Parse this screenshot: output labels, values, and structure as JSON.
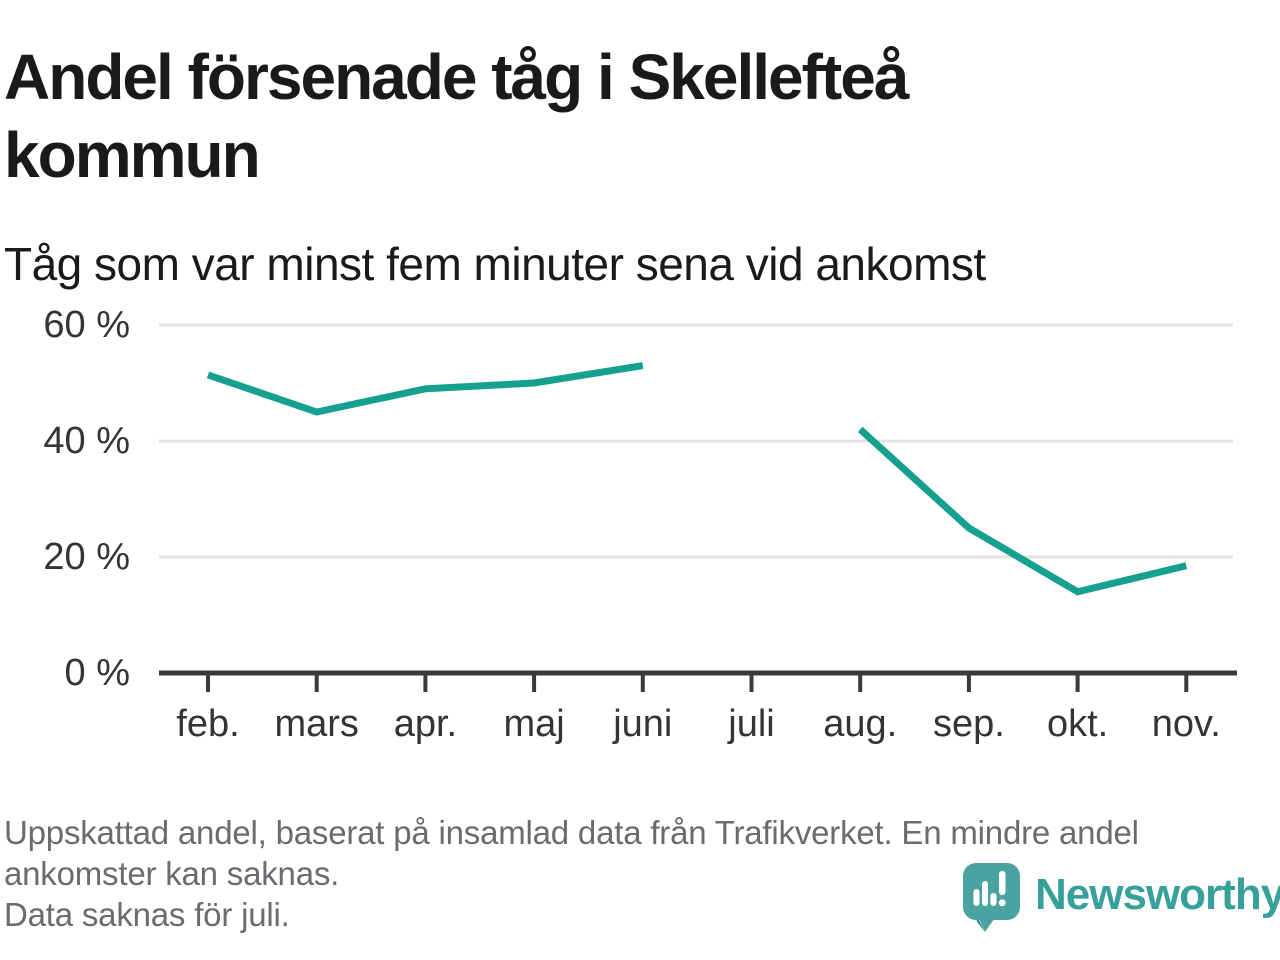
{
  "header": {
    "title": "Andel försenade tåg i Skellefteå kommun",
    "subtitle": "Tåg som var minst fem minuter sena vid ankomst"
  },
  "chart_data": {
    "type": "line",
    "title": "Andel försenade tåg i Skellefteå kommun",
    "subtitle": "Tåg som var minst fem minuter sena vid ankomst",
    "categories": [
      "feb.",
      "mars",
      "apr.",
      "maj",
      "juni",
      "juli",
      "aug.",
      "sep.",
      "okt.",
      "nov."
    ],
    "series": [
      {
        "name": "Andel försenade tåg",
        "values": [
          51.4,
          45,
          49,
          50,
          53,
          null,
          42,
          25,
          14,
          18.5
        ]
      }
    ],
    "unit": "%",
    "ylim": [
      0,
      60
    ],
    "yticks": [
      0,
      20,
      40,
      60
    ],
    "ytick_labels": [
      "0 %",
      "20 %",
      "40 %",
      "60 %"
    ],
    "grid": true,
    "legend": "none",
    "missing_data_category": "juli",
    "line_color": "#16a090",
    "axis_color": "#3a3a3a",
    "grid_color": "#e3e3e3",
    "tick_label_color": "#343434"
  },
  "footer": {
    "lines": [
      "Uppskattad andel, baserat på insamlad data från Trafikverket. En mindre andel",
      "ankomster kan saknas.",
      "Data saknas för juli."
    ]
  },
  "branding": {
    "name": "Newsworthy",
    "icon": "newsworthy-speech-bubble-chart-icon",
    "bubble_color": "#4ba3a1",
    "bubble_shadow_color": "#3a8e8f",
    "bar_color": "#ffffff",
    "text_color": "#38a09a"
  }
}
